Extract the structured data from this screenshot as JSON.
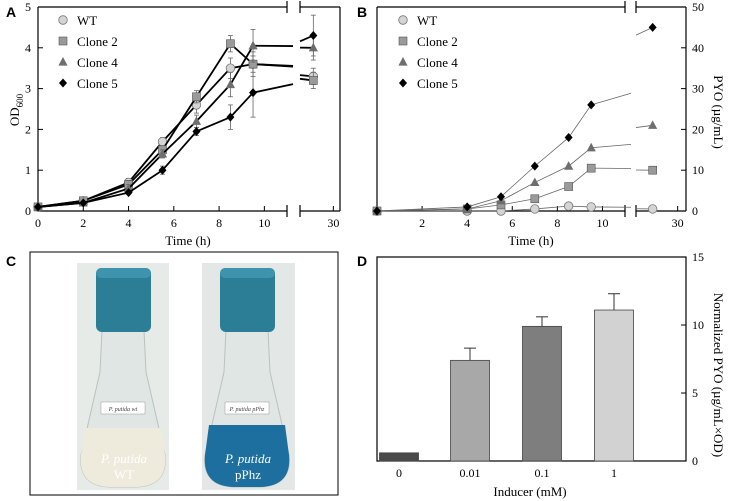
{
  "panels": {
    "a": {
      "letter": "A"
    },
    "b": {
      "letter": "B"
    },
    "c": {
      "letter": "C"
    },
    "d": {
      "letter": "D"
    }
  },
  "colors": {
    "wt": "#d4d4d4",
    "clone2": "#9a9a9a",
    "clone4": "#6e6e6e",
    "clone5": "#000000",
    "bar0": "#4a4a4a",
    "bar001": "#a8a8a8",
    "bar01": "#7e7e7e",
    "bar1": "#d2d2d2",
    "cap_blue": "#2c7d96",
    "flask_glass": "#dde3e0",
    "wt_liquid": "#ece8d8",
    "pphz_liquid": "#1d6fa0"
  },
  "photo": {
    "left_flask": {
      "strain": "P. putida",
      "variant": "WT",
      "label_text": "P. putida wt"
    },
    "right_flask": {
      "strain": "P. putida",
      "variant": "pPhz",
      "label_text": "P. putida pPhz"
    }
  },
  "chart_data": [
    {
      "id": "A",
      "type": "line",
      "title": "",
      "xlabel": "Time (h)",
      "ylabel": "OD600",
      "ylabel_main": "OD",
      "ylabel_sub": "600",
      "xlim": [
        0,
        11,
        25,
        31
      ],
      "ylim": [
        0,
        5
      ],
      "x_ticks": [
        "0",
        "2",
        "4",
        "6",
        "8",
        "10",
        "30"
      ],
      "y_ticks": [
        "0",
        "1",
        "2",
        "3",
        "4",
        "5"
      ],
      "legend": [
        "WT",
        "Clone 2",
        "Clone 4",
        "Clone 5"
      ],
      "legend_position": "top-left",
      "series": [
        {
          "name": "WT",
          "marker": "circle",
          "x": [
            0,
            2,
            4,
            5.5,
            7,
            8.5,
            9.5,
            27
          ],
          "y": [
            0.1,
            0.25,
            0.7,
            1.7,
            2.6,
            3.5,
            3.6,
            3.3
          ],
          "err": [
            0.05,
            0.05,
            0.1,
            0.1,
            0.2,
            0.25,
            0.3,
            0.2
          ]
        },
        {
          "name": "Clone 2",
          "marker": "square",
          "x": [
            0,
            2,
            4,
            5.5,
            7,
            8.5,
            9.5,
            27
          ],
          "y": [
            0.1,
            0.25,
            0.65,
            1.5,
            2.8,
            4.1,
            3.6,
            3.2
          ],
          "err": [
            0.05,
            0.05,
            0.1,
            0.1,
            0.15,
            0.2,
            0.2,
            0.2
          ]
        },
        {
          "name": "Clone 4",
          "marker": "triangle",
          "x": [
            0,
            2,
            4,
            5.5,
            7,
            8.5,
            9.5,
            27
          ],
          "y": [
            0.1,
            0.2,
            0.55,
            1.4,
            2.2,
            3.1,
            4.05,
            4.0
          ],
          "err": [
            0.05,
            0.05,
            0.1,
            0.1,
            0.15,
            0.3,
            0.4,
            0.3
          ]
        },
        {
          "name": "Clone 5",
          "marker": "diamond",
          "x": [
            0,
            2,
            4,
            5.5,
            7,
            8.5,
            9.5,
            27
          ],
          "y": [
            0.1,
            0.2,
            0.45,
            1.0,
            1.95,
            2.3,
            2.9,
            4.3
          ],
          "err": [
            0.05,
            0.05,
            0.05,
            0.1,
            0.1,
            0.3,
            0.6,
            0.5
          ]
        }
      ]
    },
    {
      "id": "B",
      "type": "line",
      "title": "",
      "xlabel": "Time (h)",
      "ylabel": "PYO (µg/mL)",
      "xlim": [
        0,
        11,
        25,
        31
      ],
      "ylim": [
        0,
        50
      ],
      "x_ticks": [
        "2",
        "4",
        "6",
        "8",
        "10",
        "30"
      ],
      "y_ticks": [
        "0",
        "10",
        "20",
        "30",
        "40",
        "50"
      ],
      "legend": [
        "WT",
        "Clone 2",
        "Clone 4",
        "Clone 5"
      ],
      "legend_position": "top-left",
      "series": [
        {
          "name": "WT",
          "marker": "circle",
          "x": [
            0,
            4,
            5.5,
            7,
            8.5,
            9.5,
            27
          ],
          "y": [
            0,
            0,
            0,
            0.5,
            1.2,
            1,
            0.5
          ]
        },
        {
          "name": "Clone 2",
          "marker": "square",
          "x": [
            0,
            4,
            5.5,
            7,
            8.5,
            9.5,
            27
          ],
          "y": [
            0,
            0.5,
            1.5,
            3,
            6,
            10.5,
            10
          ]
        },
        {
          "name": "Clone 4",
          "marker": "triangle",
          "x": [
            0,
            4,
            5.5,
            7,
            8.5,
            9.5,
            27
          ],
          "y": [
            0,
            0.5,
            2.5,
            7,
            11,
            15.5,
            21
          ]
        },
        {
          "name": "Clone 5",
          "marker": "diamond",
          "x": [
            0,
            4,
            5.5,
            7,
            8.5,
            9.5,
            27
          ],
          "y": [
            0,
            1,
            3.5,
            11,
            18,
            26,
            45
          ]
        }
      ]
    },
    {
      "id": "D",
      "type": "bar",
      "title": "",
      "xlabel": "Inducer (mM)",
      "ylabel": "Normalized PYO (µg/mL×OD)",
      "ylim": [
        0,
        15
      ],
      "y_ticks": [
        "0",
        "5",
        "10",
        "15"
      ],
      "categories": [
        "0",
        "0.01",
        "0.1",
        "1"
      ],
      "values": [
        0.6,
        7.4,
        9.9,
        11.1
      ],
      "err": [
        0.05,
        0.9,
        0.7,
        1.2
      ]
    }
  ]
}
